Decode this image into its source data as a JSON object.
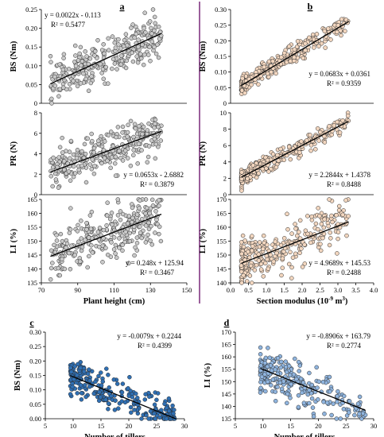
{
  "colors": {
    "grey_fill": "#c9c9c9",
    "tan_fill": "#f2d6bf",
    "blue_fill": "#2f6fb3",
    "lightblue_fill": "#8fb4de",
    "marker_stroke": "#2b2b2b",
    "divider": "#7a2a7a",
    "trend": "#000000"
  },
  "chart_data": [
    {
      "id": "a_bs",
      "panel_label": "a",
      "type": "scatter",
      "xlabel": "",
      "ylabel": "BS (Nm)",
      "xlim": [
        70,
        150
      ],
      "ylim": [
        0,
        0.25
      ],
      "yticks": [
        0,
        0.05,
        0.1,
        0.15,
        0.2,
        0.25
      ],
      "ytick_labels": [
        "0",
        "0.05",
        "0.10",
        "0.15",
        "0.20",
        "0.25"
      ],
      "xticks": [],
      "xtick_labels": [],
      "marker": "grey",
      "x_range_pts": [
        75,
        136
      ],
      "n_points": 300,
      "noise": 0.027,
      "trend": {
        "slope": 0.0022,
        "intercept": -0.113
      },
      "equation": "y = 0.0022x - 0.113",
      "r2": "R² = 0.5477",
      "eq_pos": "top-left"
    },
    {
      "id": "a_pr",
      "type": "scatter",
      "xlabel": "",
      "ylabel": "PR (N)",
      "xlim": [
        70,
        150
      ],
      "ylim": [
        0,
        8
      ],
      "yticks": [
        0,
        2,
        4,
        6,
        8
      ],
      "ytick_labels": [
        "0",
        "2",
        "4",
        "6",
        "8"
      ],
      "xticks": [],
      "xtick_labels": [],
      "marker": "grey",
      "x_range_pts": [
        75,
        136
      ],
      "n_points": 300,
      "noise": 0.95,
      "trend": {
        "slope": 0.0653,
        "intercept": -2.6882
      },
      "equation": "y = 0.0653x - 2.6882",
      "r2": "R² = 0.3879",
      "eq_pos": "bottom-right"
    },
    {
      "id": "a_li",
      "type": "scatter",
      "xlabel": "Plant height (cm)",
      "ylabel": "LI (%)",
      "xlim": [
        70,
        150
      ],
      "ylim": [
        135,
        165
      ],
      "yticks": [
        135,
        140,
        145,
        150,
        155,
        160,
        165
      ],
      "ytick_labels": [
        "135",
        "140",
        "145",
        "150",
        "155",
        "160",
        "165"
      ],
      "xticks": [
        70,
        90,
        110,
        130,
        150
      ],
      "xtick_labels": [
        "70",
        "90",
        "110",
        "130",
        "150"
      ],
      "marker": "grey",
      "x_range_pts": [
        75,
        136
      ],
      "n_points": 300,
      "noise": 4.6,
      "trend": {
        "slope": 0.248,
        "intercept": 125.94
      },
      "equation": "y = 0.248x + 125.94",
      "r2": "R² = 0.3467",
      "eq_pos": "bottom-right"
    },
    {
      "id": "b_bs",
      "panel_label": "b",
      "type": "scatter",
      "xlabel": "",
      "ylabel": "BS (Nm)",
      "xlim": [
        0,
        4
      ],
      "ylim": [
        0,
        0.3
      ],
      "yticks": [
        0,
        0.05,
        0.1,
        0.15,
        0.2,
        0.25,
        0.3
      ],
      "ytick_labels": [
        "0",
        "0.05",
        "0.10",
        "0.15",
        "0.20",
        "0.25",
        "0.30"
      ],
      "xticks": [],
      "xtick_labels": [],
      "marker": "tan",
      "x_range_pts": [
        0.3,
        3.3
      ],
      "n_points": 300,
      "noise": 0.015,
      "trend": {
        "slope": 0.0683,
        "intercept": 0.0361
      },
      "equation": "y = 0.0683x + 0.0361",
      "r2": "R² = 0.9359",
      "eq_pos": "bottom-right"
    },
    {
      "id": "b_pr",
      "type": "scatter",
      "xlabel": "",
      "ylabel": "PR (N)",
      "xlim": [
        0,
        4
      ],
      "ylim": [
        0,
        10
      ],
      "yticks": [
        0,
        2,
        4,
        6,
        8,
        10
      ],
      "ytick_labels": [
        "0",
        "2",
        "4",
        "6",
        "8",
        "10"
      ],
      "xticks": [],
      "xtick_labels": [],
      "marker": "tan",
      "x_range_pts": [
        0.3,
        3.3
      ],
      "n_points": 300,
      "noise": 0.5,
      "trend": {
        "slope": 2.2844,
        "intercept": 1.4378
      },
      "equation": "y = 2.2844x + 1.4378",
      "r2": "R² = 0.8488",
      "eq_pos": "bottom-right"
    },
    {
      "id": "b_li",
      "type": "scatter",
      "xlabel": "Section modulus (10",
      "xlabel_sup": "-9",
      "xlabel_tail": " m",
      "xlabel_sup2": "3",
      "xlabel_end": ")",
      "ylabel": "LI (%)",
      "xlim": [
        0,
        4
      ],
      "ylim": [
        140,
        170
      ],
      "yticks": [
        140,
        145,
        150,
        155,
        160,
        165,
        170
      ],
      "ytick_labels": [
        "140",
        "145",
        "150",
        "155",
        "160",
        "165",
        "170"
      ],
      "xticks": [
        0,
        0.5,
        1,
        1.5,
        2,
        2.5,
        3,
        3.5,
        4
      ],
      "xtick_labels": [
        "0.0",
        "0.5",
        "1.0",
        "1.5",
        "2.0",
        "2.5",
        "3.0",
        "3.5",
        "4.0"
      ],
      "marker": "tan",
      "x_range_pts": [
        0.3,
        3.3
      ],
      "n_points": 300,
      "noise": 4.2,
      "trend": {
        "slope": 4.9689,
        "intercept": 145.53
      },
      "equation": "y = 4.9689x + 145.53",
      "r2": "R² = 0.2488",
      "eq_pos": "bottom-right"
    },
    {
      "id": "c_bs",
      "panel_label": "c",
      "type": "scatter",
      "xlabel": "Number of tillers",
      "ylabel": "BS (Nm)",
      "xlim": [
        5,
        30
      ],
      "ylim": [
        0,
        0.3
      ],
      "yticks": [
        0,
        0.05,
        0.1,
        0.15,
        0.2,
        0.25,
        0.3
      ],
      "ytick_labels": [
        "0.00",
        "0.05",
        "0.10",
        "0.15",
        "0.20",
        "0.25",
        "0.30"
      ],
      "xticks": [
        5,
        10,
        15,
        20,
        25,
        30
      ],
      "xtick_labels": [
        "5",
        "10",
        "15",
        "20",
        "25",
        "30"
      ],
      "marker": "blue",
      "x_range_pts": [
        9.5,
        28.5
      ],
      "n_points": 260,
      "noise": 0.03,
      "trend": {
        "slope": -0.0079,
        "intercept": 0.2244
      },
      "equation": "y = -0.0079x + 0.2244",
      "r2": "R² = 0.4399",
      "eq_pos": "top-right"
    },
    {
      "id": "d_li",
      "panel_label": "d",
      "type": "scatter",
      "xlabel": "Number of tillers",
      "ylabel": "LI (%)",
      "xlim": [
        5,
        30
      ],
      "ylim": [
        135,
        170
      ],
      "yticks": [
        135,
        140,
        145,
        150,
        155,
        160,
        165,
        170
      ],
      "ytick_labels": [
        "135",
        "140",
        "145",
        "150",
        "155",
        "160",
        "165",
        "170"
      ],
      "xticks": [
        5,
        10,
        15,
        20,
        25,
        30
      ],
      "xtick_labels": [
        "5",
        "10",
        "15",
        "20",
        "25",
        "30"
      ],
      "marker": "lightblue",
      "x_range_pts": [
        9.5,
        28.5
      ],
      "n_points": 260,
      "noise": 4.5,
      "trend": {
        "slope": -0.8906,
        "intercept": 163.79
      },
      "equation": "y = -0.8906x + 163.79",
      "r2": "R² = 0.2774",
      "eq_pos": "top-right"
    }
  ]
}
